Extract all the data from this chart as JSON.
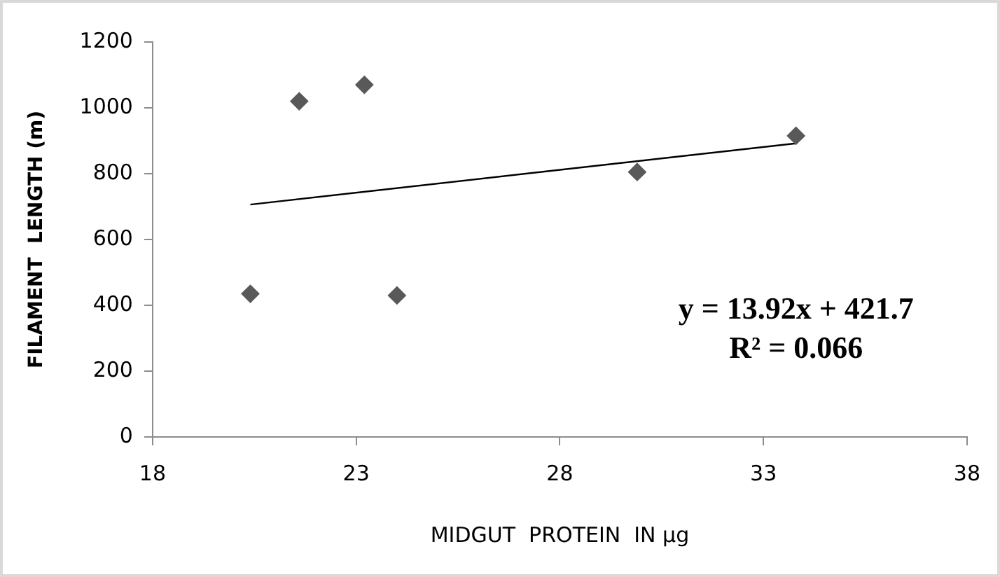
{
  "chart_data": {
    "type": "scatter",
    "xlabel": "MIDGUT  PROTEIN  IN µg",
    "ylabel": "FILAMENT  LENGTH (m)",
    "xlim": [
      18,
      38
    ],
    "xticks": [
      18,
      23,
      28,
      33,
      38
    ],
    "ylim": [
      0,
      1200
    ],
    "yticks": [
      0,
      200,
      400,
      600,
      800,
      1000,
      1200
    ],
    "grid": false,
    "legend": false,
    "marker": "diamond",
    "series": [
      {
        "type": "scatter",
        "color": "#595959",
        "x": [
          20.4,
          21.6,
          23.2,
          24.0,
          29.9,
          33.8
        ],
        "values": [
          435,
          1020,
          1070,
          430,
          805,
          915
        ]
      },
      {
        "type": "line",
        "color": "#000000",
        "marker": "none",
        "x": [
          20.4,
          33.8
        ],
        "values": [
          706,
          892
        ]
      }
    ],
    "annotations": [
      "y = 13.92x + 421.7",
      "R² = 0.066"
    ]
  }
}
